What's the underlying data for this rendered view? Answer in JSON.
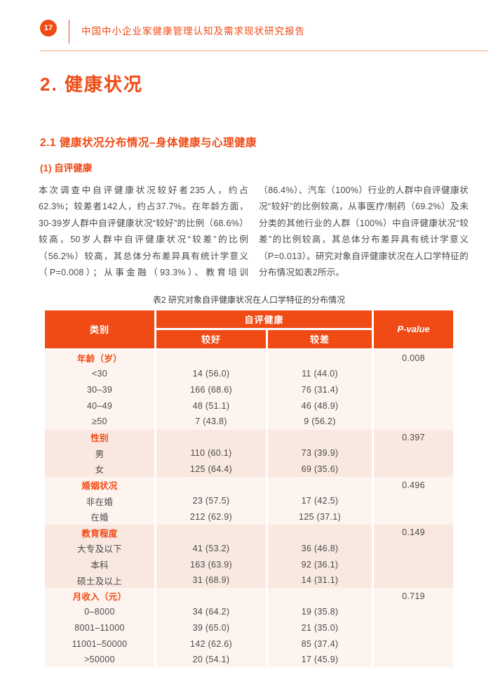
{
  "colors": {
    "accent": "#F04A15",
    "header_rule": "#ECA57F",
    "row_light": "#FDF4EF",
    "row_dark": "#F9E8E0",
    "text": "#4A4A4A"
  },
  "page": {
    "number": "17",
    "header_title": "中国中小企业家健康管理认知及需求现状研究报告"
  },
  "content": {
    "title": "2. 健康状况",
    "section_heading": "2.1 健康状况分布情况–身体健康与心理健康",
    "subsection_heading": "(1)  自评健康",
    "body": "本次调查中自评健康状况较好者235人，约占62.3%；较差者142人，约占37.7%。在年龄方面，30-39岁人群中自评健康状况“较好”的比例（68.6%）较高，50岁人群中自评健康状况“较差”的比例（56.2%）较高，其总体分布差异具有统计学意义（P=0.008）；从事金融（93.3%）、教育培训（86.4%）、汽车（100%）行业的人群中自评健康状况“较好”的比例较高，从事医疗/制药（69.2%）及未分类的其他行业的人群（100%）中自评健康状况“较差”的比例较高，其总体分布差异具有统计学意义（P=0.013）。研究对象自评健康状况在人口学特征的分布情况如表2所示。"
  },
  "table": {
    "caption": "表2 研究对象自评健康状况在人口学特征的分布情况",
    "header": {
      "category": "类别",
      "group": "自评健康",
      "sub_better": "较好",
      "sub_worse": "较差",
      "p_value": "P-value"
    },
    "sections": [
      {
        "label": "年龄（岁）",
        "p_value": "0.008",
        "shade": "light",
        "rows": [
          [
            "<30",
            "14 (56.0)",
            "11 (44.0)"
          ],
          [
            "30–39",
            "166 (68.6)",
            "76 (31.4)"
          ],
          [
            "40–49",
            "48 (51.1)",
            "46 (48.9)"
          ],
          [
            "≥50",
            "7 (43.8)",
            "9 (56.2)"
          ]
        ]
      },
      {
        "label": "性别",
        "p_value": "0.397",
        "shade": "dark",
        "rows": [
          [
            "男",
            "110 (60.1)",
            "73 (39.9)"
          ],
          [
            "女",
            "125 (64.4)",
            "69 (35.6)"
          ]
        ]
      },
      {
        "label": "婚姻状况",
        "p_value": "0.496",
        "shade": "light",
        "rows": [
          [
            "非在婚",
            "23 (57.5)",
            "17 (42.5)"
          ],
          [
            "在婚",
            "212 (62.9)",
            "125 (37.1)"
          ]
        ]
      },
      {
        "label": "教育程度",
        "p_value": "0.149",
        "shade": "dark",
        "rows": [
          [
            "大专及以下",
            "41 (53.2)",
            "36 (46.8)"
          ],
          [
            "本科",
            "163 (63.9)",
            "92 (36.1)"
          ],
          [
            "硕士及以上",
            "31 (68.9)",
            "14 (31.1)"
          ]
        ]
      },
      {
        "label": "月收入（元）",
        "p_value": "0.719",
        "shade": "light",
        "rows": [
          [
            "0–8000",
            "34 (64.2)",
            "19 (35.8)"
          ],
          [
            "8001–11000",
            "39 (65.0)",
            "21 (35.0)"
          ],
          [
            "11001–50000",
            "142 (62.6)",
            "85 (37.4)"
          ],
          [
            ">50000",
            "20 (54.1)",
            "17 (45.9)"
          ]
        ]
      }
    ]
  }
}
